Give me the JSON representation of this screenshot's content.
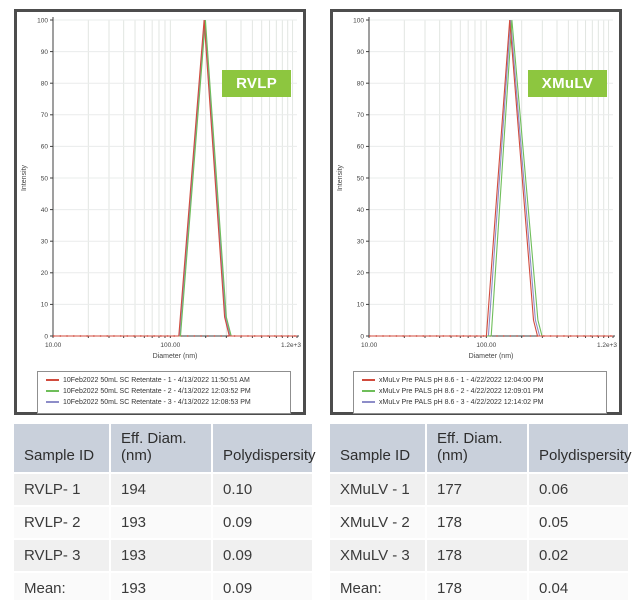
{
  "colors": {
    "badge_green": "#8dc63f",
    "table_header_bg": "#c9d0db",
    "row_band_a": "#f0f0f0",
    "row_band_b": "#fafafa",
    "series_red": "#d14b3d",
    "series_green": "#6fbe5a",
    "series_blue": "#8d8dc8",
    "grid_v": "#e2e6e2",
    "grid_h": "#eaeceb",
    "axis": "#3f3f3f"
  },
  "chart_data": [
    {
      "type": "line",
      "badge": "RVLP",
      "xlabel": "Diameter (nm)",
      "ylabel": "Intensity",
      "xscale": "log",
      "xlim": [
        10,
        1200
      ],
      "ylim": [
        0,
        100
      ],
      "x_tick_labels": [
        "10.00",
        "100.00",
        "1.2e+3"
      ],
      "y_ticks": [
        0,
        10,
        20,
        30,
        40,
        50,
        60,
        70,
        80,
        90,
        100
      ],
      "grid": true,
      "legend_position": "bottom-box",
      "series": [
        {
          "name": "10Feb2022 50mL SC Retentate - 1 - 4/13/2022 11:50:51 AM",
          "color": "#d14b3d",
          "points": [
            [
              10,
              0
            ],
            [
              118,
              0
            ],
            [
              194,
              100
            ],
            [
              290,
              6
            ],
            [
              318,
              0
            ],
            [
              1200,
              0
            ]
          ]
        },
        {
          "name": "10Feb2022 50mL SC Retentate - 2 - 4/13/2022 12:03:52 PM",
          "color": "#6fbe5a",
          "points": [
            [
              10,
              0
            ],
            [
              122,
              0
            ],
            [
              199,
              100
            ],
            [
              300,
              6
            ],
            [
              330,
              0
            ],
            [
              1200,
              0
            ]
          ]
        },
        {
          "name": "10Feb2022 50mL SC Retentate - 3 - 4/13/2022 12:08:53 PM",
          "color": "#8d8dc8",
          "points": [
            [
              10,
              0
            ],
            [
              120,
              0
            ],
            [
              196,
              100
            ],
            [
              295,
              6
            ],
            [
              324,
              0
            ],
            [
              1200,
              0
            ]
          ]
        }
      ]
    },
    {
      "type": "line",
      "badge": "XMuLV",
      "xlabel": "Diameter (nm)",
      "ylabel": "Intensity",
      "xscale": "log",
      "xlim": [
        10,
        1200
      ],
      "ylim": [
        0,
        100
      ],
      "x_tick_labels": [
        "10.00",
        "100.00",
        "1.2e+3"
      ],
      "y_ticks": [
        0,
        10,
        20,
        30,
        40,
        50,
        60,
        70,
        80,
        90,
        100
      ],
      "grid": true,
      "legend_position": "bottom-box",
      "series": [
        {
          "name": "xMuLv Pre PALS pH 8.6 - 1 - 4/22/2022 12:04:00 PM",
          "color": "#d14b3d",
          "points": [
            [
              10,
              0
            ],
            [
              100,
              0
            ],
            [
              158,
              100
            ],
            [
              252,
              5
            ],
            [
              273,
              0
            ],
            [
              1200,
              0
            ]
          ]
        },
        {
          "name": "xMuLv Pre PALS pH 8.6 - 2 - 4/22/2022 12:09:01 PM",
          "color": "#6fbe5a",
          "points": [
            [
              10,
              0
            ],
            [
              110,
              0
            ],
            [
              165,
              100
            ],
            [
              275,
              5
            ],
            [
              298,
              0
            ],
            [
              1200,
              0
            ]
          ]
        },
        {
          "name": "xMuLv Pre PALS pH 8.6 - 3 - 4/22/2022 12:14:02 PM",
          "color": "#8d8dc8",
          "points": [
            [
              10,
              0
            ],
            [
              104,
              0
            ],
            [
              161,
              100
            ],
            [
              262,
              5
            ],
            [
              284,
              0
            ],
            [
              1200,
              0
            ]
          ]
        }
      ]
    }
  ],
  "tables": [
    {
      "headers": [
        [
          "Sample ID"
        ],
        [
          "Eff. Diam.",
          "(nm)"
        ],
        [
          "Polydispersity"
        ]
      ],
      "rows": [
        [
          "RVLP- 1",
          "194",
          "0.10"
        ],
        [
          "RVLP- 2",
          "193",
          "0.09"
        ],
        [
          "RVLP- 3",
          "193",
          "0.09"
        ],
        [
          "Mean:",
          "193",
          "0.09"
        ]
      ]
    },
    {
      "headers": [
        [
          "Sample ID"
        ],
        [
          "Eff. Diam.",
          "(nm)"
        ],
        [
          "Polydispersity"
        ]
      ],
      "rows": [
        [
          "XMuLV - 1",
          "177",
          "0.06"
        ],
        [
          "XMuLV - 2",
          "178",
          "0.05"
        ],
        [
          "XMuLV - 3",
          "178",
          "0.02"
        ],
        [
          "Mean:",
          "178",
          "0.04"
        ]
      ]
    }
  ]
}
